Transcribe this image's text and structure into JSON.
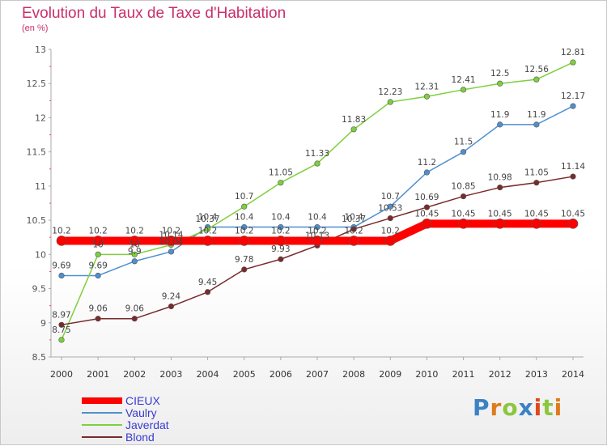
{
  "title": "Evolution du Taux de Taxe d'Habitation",
  "subtitle": "(en %)",
  "logo": "Proxiti",
  "chart_data": {
    "type": "line",
    "x": [
      2000,
      2001,
      2002,
      2003,
      2004,
      2005,
      2006,
      2007,
      2008,
      2009,
      2010,
      2011,
      2012,
      2013,
      2014
    ],
    "ylim": [
      8.5,
      13
    ],
    "yticks": [
      "8.5",
      "9",
      "9.5",
      "10",
      "10.5",
      "11",
      "11.5",
      "12",
      "12.5",
      "13"
    ],
    "xlabel": "",
    "ylabel": "",
    "grid": false,
    "legend_position": "bottom-left",
    "series": [
      {
        "name": "CIEUX",
        "color": "#ff0000",
        "values": [
          10.2,
          10.2,
          10.2,
          10.2,
          10.2,
          10.2,
          10.2,
          10.2,
          10.2,
          10.2,
          10.45,
          10.45,
          10.45,
          10.45,
          10.45
        ],
        "labels": [
          "10.2",
          "10.2",
          "10.2",
          "10.2",
          "10.2",
          "10.2",
          "10.2",
          "10.2",
          "10.2",
          "10.2",
          "10.45",
          "10.45",
          "10.45",
          "10.45",
          "10.45"
        ]
      },
      {
        "name": "Vaulry",
        "color": "#4f8fcf",
        "values": [
          9.69,
          9.69,
          9.9,
          10.04,
          10.4,
          10.4,
          10.4,
          10.4,
          10.4,
          10.7,
          11.2,
          11.5,
          11.9,
          11.9,
          12.17
        ],
        "labels": [
          "9.69",
          "9.69",
          "9.9",
          "10.04",
          "10.4",
          "10.4",
          "10.4",
          "10.4",
          "10.4",
          "10.7",
          "11.2",
          "11.5",
          "11.9",
          "11.9",
          "12.17"
        ]
      },
      {
        "name": "Javerdat",
        "color": "#7dd03c",
        "values": [
          8.75,
          10,
          10,
          10.14,
          10.37,
          10.7,
          11.05,
          11.33,
          11.83,
          12.23,
          12.31,
          12.41,
          12.5,
          12.56,
          12.81
        ],
        "labels": [
          "8.75",
          "10",
          "10",
          "10.14",
          "10.37",
          "10.7",
          "11.05",
          "11.33",
          "11.83",
          "12.23",
          "12.31",
          "12.41",
          "12.5",
          "12.56",
          "12.81"
        ]
      },
      {
        "name": "Blond",
        "color": "#7a2a2a",
        "values": [
          8.97,
          9.06,
          9.06,
          9.24,
          9.45,
          9.78,
          9.93,
          10.13,
          10.37,
          10.53,
          10.69,
          10.85,
          10.98,
          11.05,
          11.14
        ],
        "labels": [
          "8.97",
          "9.06",
          "9.06",
          "9.24",
          "9.45",
          "9.78",
          "9.93",
          "10.13",
          "10.37",
          "10.53",
          "10.69",
          "10.85",
          "10.98",
          "11.05",
          "11.14"
        ]
      }
    ]
  }
}
